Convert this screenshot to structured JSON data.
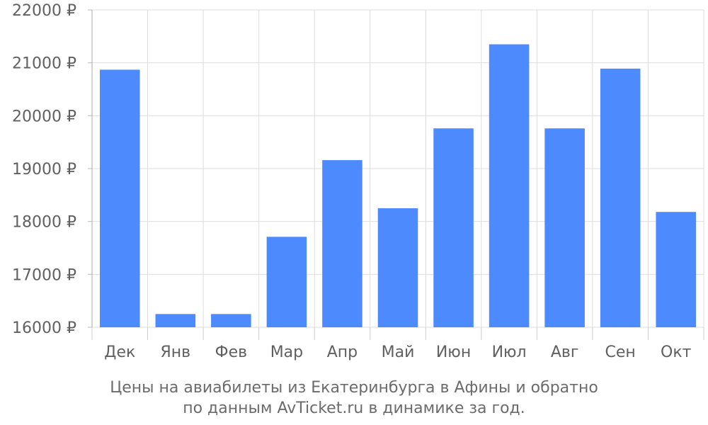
{
  "chart_data": {
    "type": "bar",
    "categories": [
      "Дек",
      "Янв",
      "Фев",
      "Мар",
      "Апр",
      "Май",
      "Июн",
      "Июл",
      "Авг",
      "Сен",
      "Окт"
    ],
    "values": [
      20870,
      16250,
      16250,
      17710,
      19160,
      18250,
      19760,
      21350,
      19760,
      20890,
      18180
    ],
    "ylim": [
      16000,
      22000
    ],
    "yticks": [
      16000,
      17000,
      18000,
      19000,
      20000,
      21000,
      22000
    ],
    "y_unit": "₽",
    "grid": true,
    "bar_color": "#4d8afd",
    "title": "",
    "xlabel": "",
    "ylabel": ""
  },
  "caption": {
    "line1": "Цены на авиабилеты из Екатеринбурга в Афины и обратно",
    "line2": "по данным AvTicket.ru в динамике за год."
  }
}
